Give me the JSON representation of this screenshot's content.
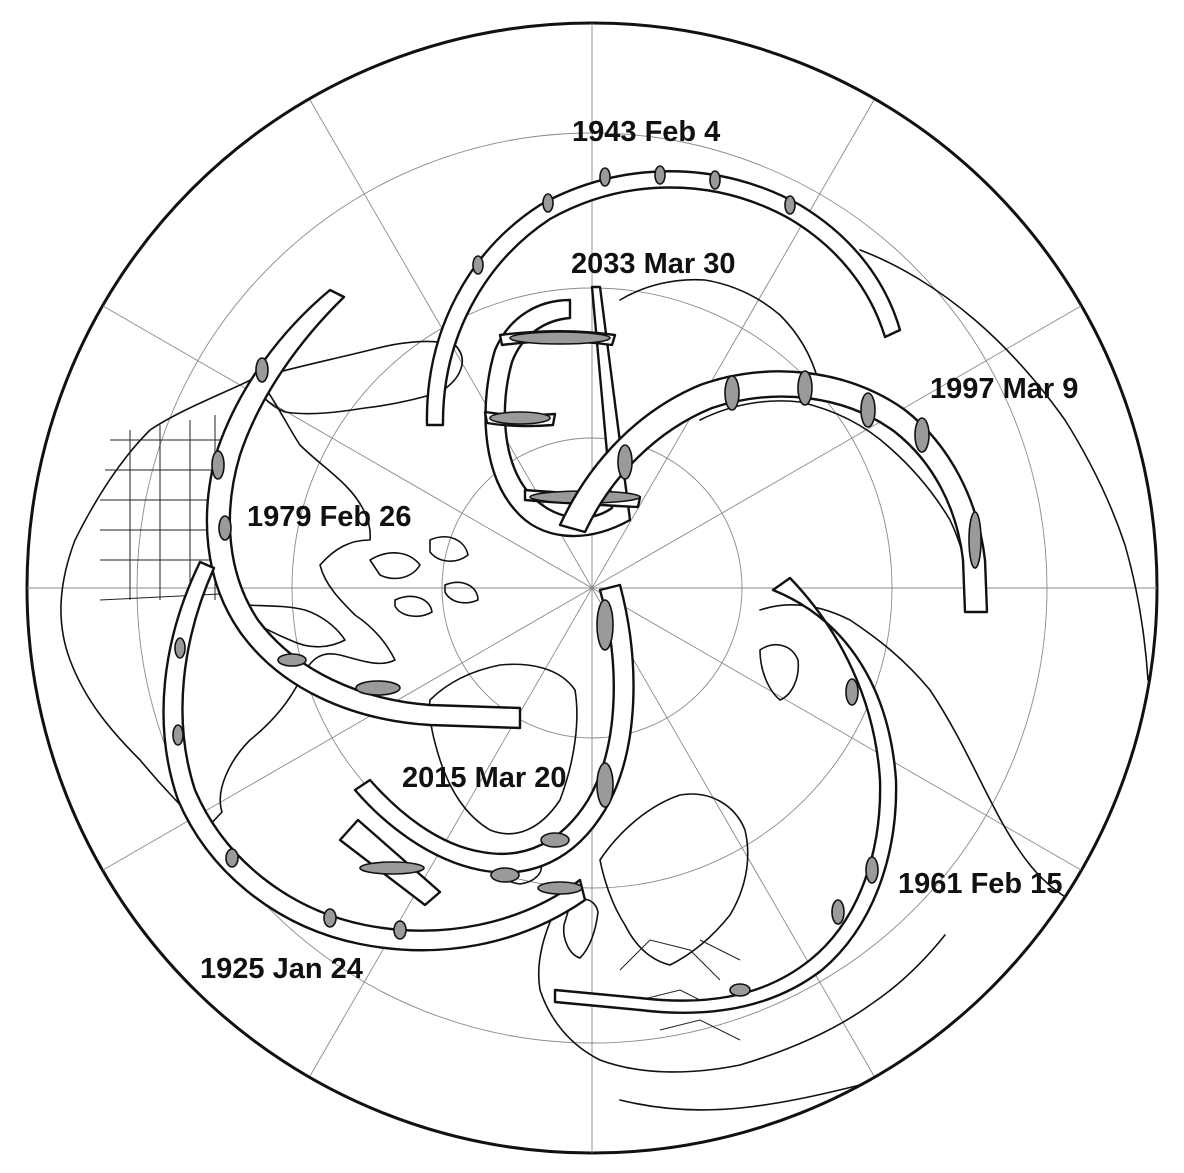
{
  "map": {
    "projection": "polar azimuthal",
    "center": "north-pole",
    "colors": {
      "land_outline": "#111111",
      "graticule": "#8a8a8a",
      "track_fill": "#ffffff",
      "totality_fill": "#9a9a9a"
    }
  },
  "eclipse_tracks": [
    {
      "label": "1925 Jan 24"
    },
    {
      "label": "1943 Feb 4"
    },
    {
      "label": "1961 Feb 15"
    },
    {
      "label": "1979 Feb 26"
    },
    {
      "label": "1997 Mar 9"
    },
    {
      "label": "2015 Mar 20"
    },
    {
      "label": "2033 Mar 30"
    }
  ]
}
